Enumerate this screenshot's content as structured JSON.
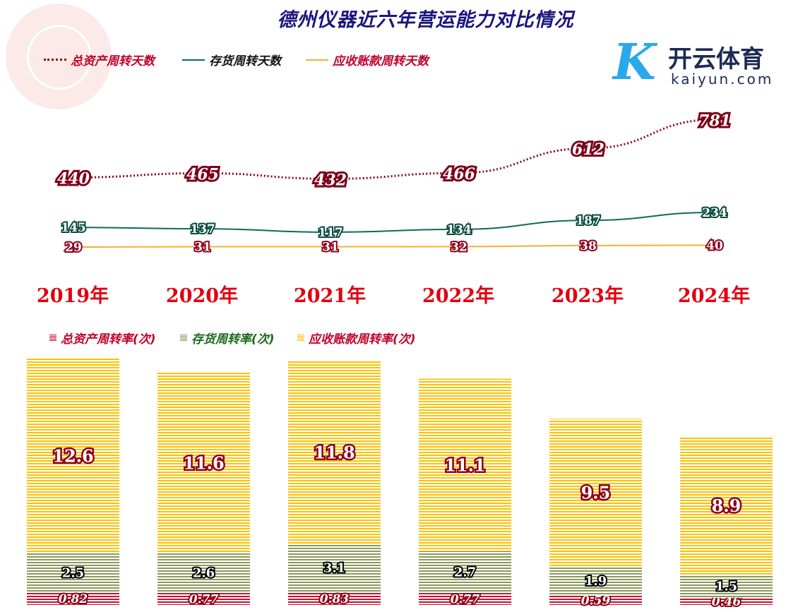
{
  "title": "德州仪器近六年营运能力对比情况",
  "chart_data": [
    {
      "type": "line",
      "categories": [
        "2019年",
        "2020年",
        "2021年",
        "2022年",
        "2023年",
        "2024年"
      ],
      "series": [
        {
          "name": "总资产周转天数",
          "values": [
            440,
            465,
            432,
            466,
            612,
            781
          ],
          "color": "#8b0020",
          "style": "dotted"
        },
        {
          "name": "存货周转天数",
          "values": [
            145,
            137,
            117,
            134,
            187,
            234
          ],
          "color": "#0e6b5e",
          "style": "solid"
        },
        {
          "name": "应收账款周转天数",
          "values": [
            29,
            31,
            31,
            32,
            38,
            40
          ],
          "color": "#f7b030",
          "style": "solid"
        }
      ],
      "legend": "top-left"
    },
    {
      "type": "bar",
      "stacked": true,
      "categories": [
        "2019年",
        "2020年",
        "2021年",
        "2022年",
        "2023年",
        "2024年"
      ],
      "series": [
        {
          "name": "总资产周转率(次)",
          "values": [
            0.82,
            0.77,
            0.83,
            0.77,
            0.59,
            0.46
          ],
          "color": "#c8102e"
        },
        {
          "name": "存货周转率(次)",
          "values": [
            2.5,
            2.6,
            3.1,
            2.7,
            1.9,
            1.5
          ],
          "color": "#8a9a5b"
        },
        {
          "name": "应收账款周转率(次)",
          "values": [
            12.6,
            11.6,
            11.8,
            11.1,
            9.5,
            8.9
          ],
          "color": "#ffc000"
        }
      ],
      "legend": "top-left"
    }
  ],
  "watermark": {
    "cn": "开云体育",
    "en": "kaiyun.com",
    "mark": "K"
  }
}
